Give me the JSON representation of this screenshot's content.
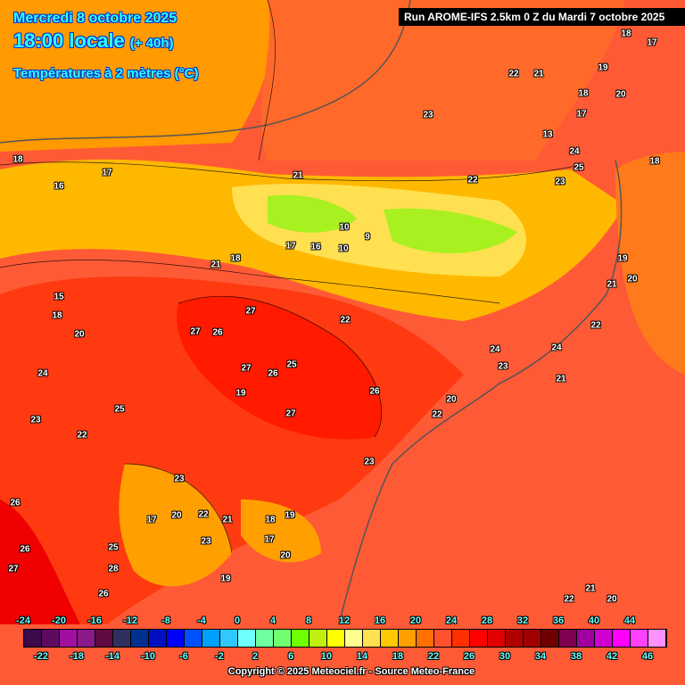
{
  "header": {
    "date": "Mercredi 8 octobre 2025",
    "time": "18:00 locale",
    "lead": "(+ 40h)",
    "variable": "Températures à 2 mètres (°C)",
    "run": "Run AROME-IFS 2.5km 0 Z du Mardi 7 octobre 2025"
  },
  "legend": {
    "top_ticks": [
      "-24",
      "-20",
      "-16",
      "-12",
      "-8",
      "-4",
      "0",
      "4",
      "8",
      "12",
      "16",
      "20",
      "24",
      "28",
      "32",
      "36",
      "40",
      "44"
    ],
    "bottom_ticks": [
      "-22",
      "-18",
      "-14",
      "-10",
      "-6",
      "-2",
      "2",
      "6",
      "10",
      "14",
      "18",
      "22",
      "26",
      "30",
      "34",
      "38",
      "42",
      "46"
    ],
    "colors": [
      "#3a0a4a",
      "#5c0a62",
      "#a010a0",
      "#8a1a8a",
      "#600a40",
      "#303060",
      "#003090",
      "#0010c0",
      "#0000ff",
      "#0050ff",
      "#00a0ff",
      "#30c8ff",
      "#70ffff",
      "#70ffa0",
      "#70ff70",
      "#70ff00",
      "#c0f010",
      "#ffff00",
      "#ffff90",
      "#ffe050",
      "#ffc800",
      "#ffa000",
      "#ff7000",
      "#ff5030",
      "#ff3000",
      "#ff0000",
      "#e00000",
      "#b00000",
      "#a00000",
      "#700000",
      "#800050",
      "#a000a0",
      "#d000d0",
      "#ff00ff",
      "#ff40ff",
      "#ff90ff"
    ]
  },
  "map_labels": [
    "18",
    "17",
    "22",
    "21",
    "19",
    "18",
    "20",
    "17",
    "23",
    "13",
    "24",
    "25",
    "23",
    "18",
    "18",
    "17",
    "16",
    "21",
    "22",
    "21",
    "18",
    "17",
    "16",
    "10",
    "9",
    "10",
    "19",
    "20",
    "21",
    "22",
    "15",
    "18",
    "20",
    "27",
    "27",
    "26",
    "22",
    "24",
    "27",
    "26",
    "25",
    "24",
    "23",
    "24",
    "26",
    "27",
    "19",
    "21",
    "20",
    "22",
    "25",
    "22",
    "23",
    "23",
    "26",
    "17",
    "20",
    "22",
    "21",
    "18",
    "19",
    "17",
    "20",
    "23",
    "26",
    "27",
    "28",
    "25",
    "26",
    "19",
    "23",
    "22",
    "21",
    "20"
  ],
  "copyright": "Copyright © 2025 Meteociel.fr - Source Meteo-France"
}
